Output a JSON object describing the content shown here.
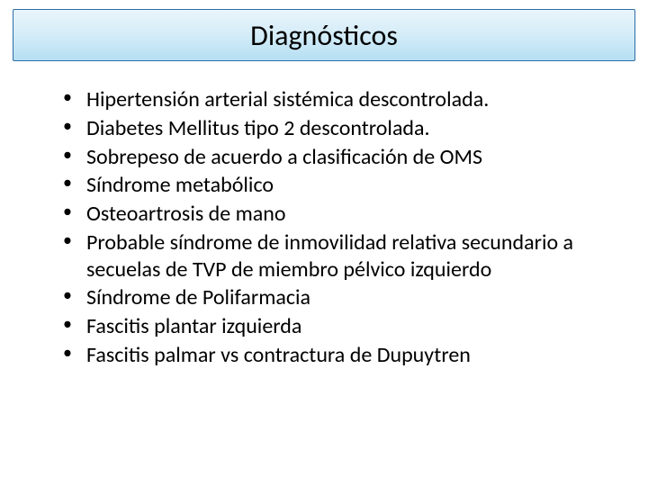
{
  "slide": {
    "title": "Diagnósticos",
    "bullets": [
      "Hipertensión arterial sistémica descontrolada.",
      "Diabetes Mellitus tipo 2 descontrolada.",
      "Sobrepeso de acuerdo a clasificación de OMS",
      "Síndrome metabólico",
      "Osteoartrosis de mano",
      "Probable síndrome de inmovilidad relativa secundario a secuelas de TVP de miembro pélvico izquierdo",
      "Síndrome de Polifarmacia",
      "Fascitis plantar izquierda",
      "Fascitis palmar vs contractura de Dupuytren"
    ],
    "title_fontsize": 32,
    "body_fontsize": 24,
    "title_gradient_top": "#eaf5fb",
    "title_gradient_mid": "#d4ecf8",
    "title_gradient_bottom": "#b5dff2",
    "title_border_color": "#2a6da8",
    "text_color": "#000000",
    "background_color": "#ffffff"
  }
}
